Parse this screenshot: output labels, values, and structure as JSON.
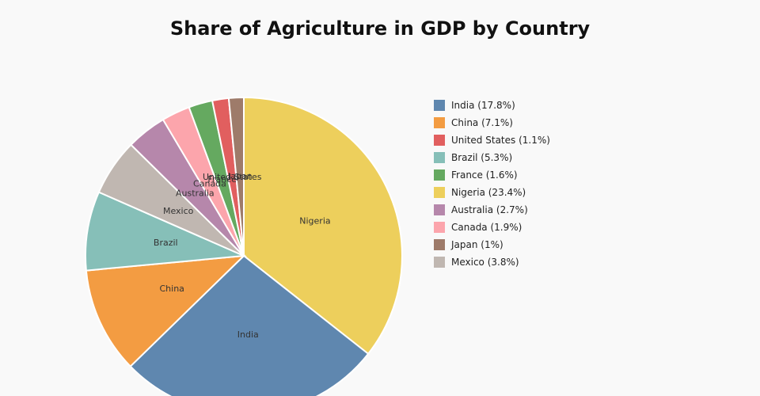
{
  "chart_data": {
    "type": "pie",
    "title": "Share of Agriculture in GDP by Country",
    "slices": [
      {
        "label": "Nigeria",
        "value": 23.4,
        "color": "#edcf5c"
      },
      {
        "label": "India",
        "value": 17.8,
        "color": "#5f87af"
      },
      {
        "label": "China",
        "value": 7.1,
        "color": "#f39c42"
      },
      {
        "label": "Brazil",
        "value": 5.3,
        "color": "#86bfb8"
      },
      {
        "label": "Mexico",
        "value": 3.8,
        "color": "#c0b7b1"
      },
      {
        "label": "Australia",
        "value": 2.7,
        "color": "#b687ab"
      },
      {
        "label": "Canada",
        "value": 1.9,
        "color": "#fca5ac"
      },
      {
        "label": "France",
        "value": 1.6,
        "color": "#65a960"
      },
      {
        "label": "United States",
        "value": 1.1,
        "color": "#e15f5f"
      },
      {
        "label": "Japan",
        "value": 1.0,
        "color": "#9e7b6a"
      }
    ],
    "legend": [
      {
        "text": "India (17.8%)",
        "color": "#5f87af"
      },
      {
        "text": "China (7.1%)",
        "color": "#f39c42"
      },
      {
        "text": "United States (1.1%)",
        "color": "#e15f5f"
      },
      {
        "text": "Brazil (5.3%)",
        "color": "#86bfb8"
      },
      {
        "text": "France (1.6%)",
        "color": "#65a960"
      },
      {
        "text": "Nigeria (23.4%)",
        "color": "#edcf5c"
      },
      {
        "text": "Australia (2.7%)",
        "color": "#b687ab"
      },
      {
        "text": "Canada (1.9%)",
        "color": "#fca5ac"
      },
      {
        "text": "Japan (1%)",
        "color": "#9e7b6a"
      },
      {
        "text": "Mexico (3.8%)",
        "color": "#c0b7b1"
      }
    ],
    "legend_position": "right"
  }
}
